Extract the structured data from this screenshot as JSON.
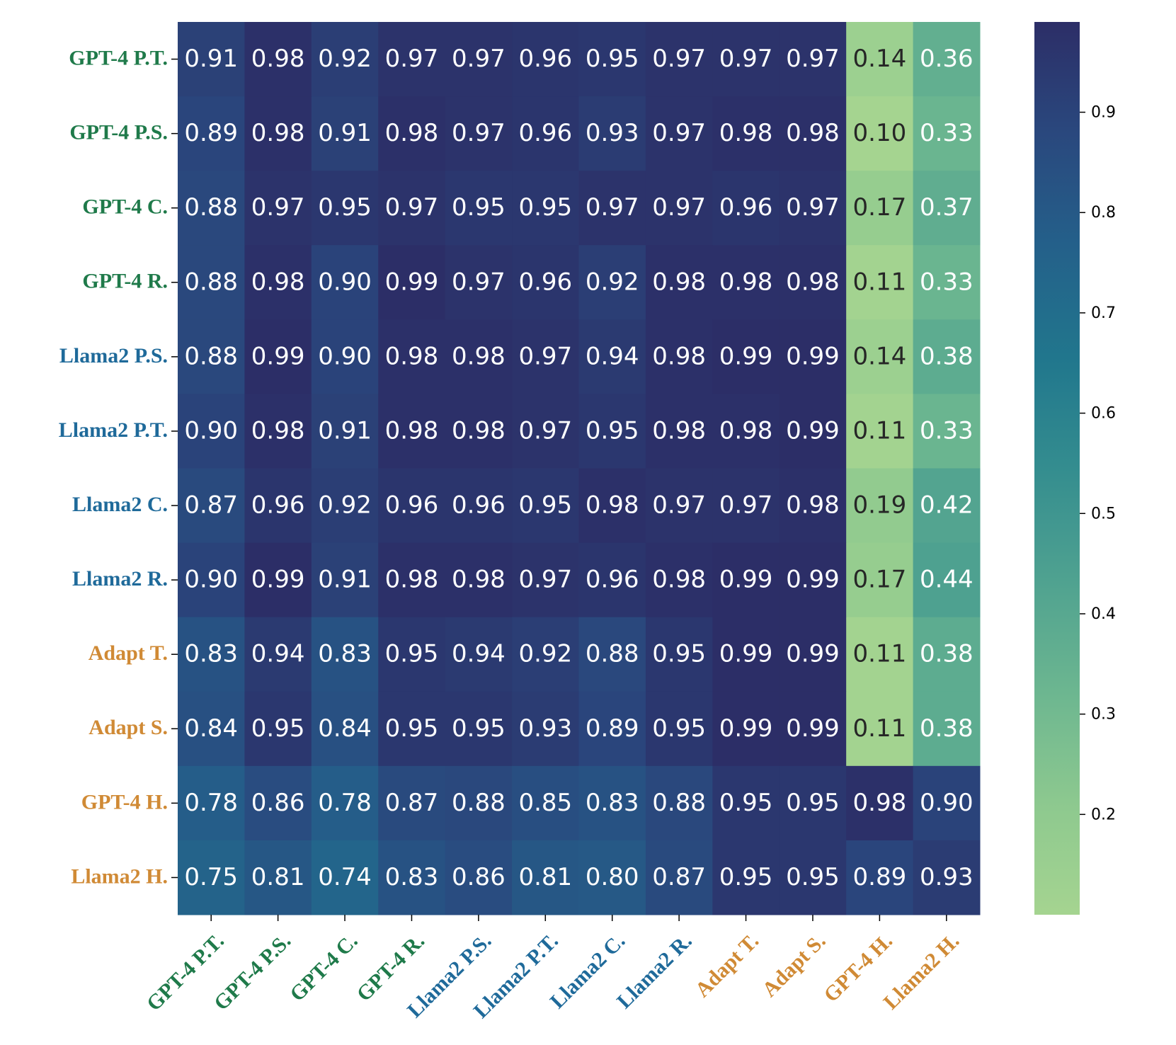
{
  "chart_data": {
    "type": "heatmap",
    "title": "",
    "xlabel": "",
    "ylabel": "",
    "colormap": "crest",
    "value_range": [
      0.1,
      0.99
    ],
    "labels": [
      "GPT-4 P.T.",
      "GPT-4 P.S.",
      "GPT-4 C.",
      "GPT-4 R.",
      "Llama2 P.S.",
      "Llama2 P.T.",
      "Llama2 C.",
      "Llama2 R.",
      "Adapt T.",
      "Adapt S.",
      "GPT-4 H.",
      "Llama2 H."
    ],
    "label_colors": [
      "#1f7a4a",
      "#1f7a4a",
      "#1f7a4a",
      "#1f7a4a",
      "#1f6a9a",
      "#1f6a9a",
      "#1f6a9a",
      "#1f6a9a",
      "#d08a35",
      "#d08a35",
      "#d08a35",
      "#d08a35"
    ],
    "rows": [
      {
        "label": "GPT-4 P.T.",
        "cells": [
          "0.91",
          "0.98",
          "0.92",
          "0.97",
          "0.97",
          "0.96",
          "0.95",
          "0.97",
          "0.97",
          "0.97",
          "0.14",
          "0.36"
        ]
      },
      {
        "label": "GPT-4 P.S.",
        "cells": [
          "0.89",
          "0.98",
          "0.91",
          "0.98",
          "0.97",
          "0.96",
          "0.93",
          "0.97",
          "0.98",
          "0.98",
          "0.10",
          "0.33"
        ]
      },
      {
        "label": "GPT-4 C.",
        "cells": [
          "0.88",
          "0.97",
          "0.95",
          "0.97",
          "0.95",
          "0.95",
          "0.97",
          "0.97",
          "0.96",
          "0.97",
          "0.17",
          "0.37"
        ]
      },
      {
        "label": "GPT-4 R.",
        "cells": [
          "0.88",
          "0.98",
          "0.90",
          "0.99",
          "0.97",
          "0.96",
          "0.92",
          "0.98",
          "0.98",
          "0.98",
          "0.11",
          "0.33"
        ]
      },
      {
        "label": "Llama2 P.S.",
        "cells": [
          "0.88",
          "0.99",
          "0.90",
          "0.98",
          "0.98",
          "0.97",
          "0.94",
          "0.98",
          "0.99",
          "0.99",
          "0.14",
          "0.38"
        ]
      },
      {
        "label": "Llama2 P.T.",
        "cells": [
          "0.90",
          "0.98",
          "0.91",
          "0.98",
          "0.98",
          "0.97",
          "0.95",
          "0.98",
          "0.98",
          "0.99",
          "0.11",
          "0.33"
        ]
      },
      {
        "label": "Llama2 C.",
        "cells": [
          "0.87",
          "0.96",
          "0.92",
          "0.96",
          "0.96",
          "0.95",
          "0.98",
          "0.97",
          "0.97",
          "0.98",
          "0.19",
          "0.42"
        ]
      },
      {
        "label": "Llama2 R.",
        "cells": [
          "0.90",
          "0.99",
          "0.91",
          "0.98",
          "0.98",
          "0.97",
          "0.96",
          "0.98",
          "0.99",
          "0.99",
          "0.17",
          "0.44"
        ]
      },
      {
        "label": "Adapt T.",
        "cells": [
          "0.83",
          "0.94",
          "0.83",
          "0.95",
          "0.94",
          "0.92",
          "0.88",
          "0.95",
          "0.99",
          "0.99",
          "0.11",
          "0.38"
        ]
      },
      {
        "label": "Adapt S.",
        "cells": [
          "0.84",
          "0.95",
          "0.84",
          "0.95",
          "0.95",
          "0.93",
          "0.89",
          "0.95",
          "0.99",
          "0.99",
          "0.11",
          "0.38"
        ]
      },
      {
        "label": "GPT-4 H.",
        "cells": [
          "0.78",
          "0.86",
          "0.78",
          "0.87",
          "0.88",
          "0.85",
          "0.83",
          "0.88",
          "0.95",
          "0.95",
          "0.98",
          "0.90"
        ]
      },
      {
        "label": "Llama2 H.",
        "cells": [
          "0.75",
          "0.81",
          "0.74",
          "0.83",
          "0.86",
          "0.81",
          "0.80",
          "0.87",
          "0.95",
          "0.95",
          "0.89",
          "0.93"
        ]
      }
    ],
    "colorbar": {
      "ticks": [
        0.2,
        0.3,
        0.4,
        0.5,
        0.6,
        0.7,
        0.8,
        0.9
      ],
      "tick_labels": [
        "0.2",
        "0.3",
        "0.4",
        "0.5",
        "0.6",
        "0.7",
        "0.8",
        "0.9"
      ]
    }
  }
}
